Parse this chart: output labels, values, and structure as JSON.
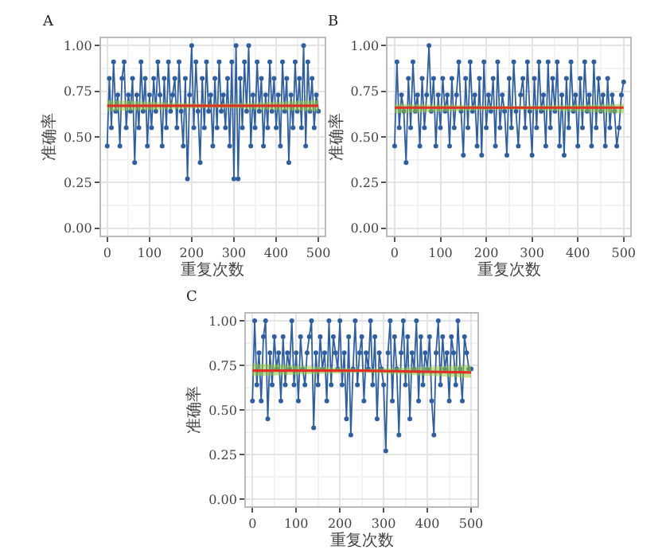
{
  "chart_data": [
    {
      "type": "line",
      "title": "A",
      "xlabel": "重复次数",
      "ylabel": "准确率",
      "xlim": [
        -15,
        515
      ],
      "ylim": [
        -0.04,
        1.04
      ],
      "xticks": [
        0,
        100,
        200,
        300,
        400,
        500
      ],
      "yticks": [
        {
          "value": 0,
          "label": "0.00"
        },
        {
          "value": 0.25,
          "label": "0.25"
        },
        {
          "value": 0.5,
          "label": "0.50"
        },
        {
          "value": 0.75,
          "label": "0.75"
        },
        {
          "value": 1,
          "label": "1.00"
        }
      ],
      "grid": true,
      "marker": "circle",
      "line_style": "solid",
      "x": [
        0,
        5,
        10,
        15,
        20,
        25,
        30,
        35,
        40,
        45,
        50,
        55,
        60,
        65,
        70,
        75,
        80,
        85,
        90,
        95,
        100,
        105,
        110,
        115,
        120,
        125,
        130,
        135,
        140,
        145,
        150,
        155,
        160,
        165,
        170,
        175,
        180,
        185,
        190,
        195,
        200,
        205,
        210,
        215,
        220,
        225,
        230,
        235,
        240,
        245,
        250,
        255,
        260,
        265,
        270,
        275,
        280,
        285,
        290,
        295,
        300,
        305,
        310,
        315,
        320,
        325,
        330,
        335,
        340,
        345,
        350,
        355,
        360,
        365,
        370,
        375,
        380,
        385,
        390,
        395,
        400,
        405,
        410,
        415,
        420,
        425,
        430,
        435,
        440,
        445,
        450,
        455,
        460,
        465,
        470,
        475,
        480,
        485,
        490,
        495,
        500
      ],
      "series": [
        {
          "color": "#2f5f9e",
          "values": [
            0.45,
            0.82,
            0.55,
            0.91,
            0.64,
            0.73,
            0.45,
            0.82,
            0.91,
            0.55,
            0.73,
            0.64,
            0.82,
            0.36,
            0.73,
            0.55,
            0.91,
            0.64,
            0.82,
            0.45,
            0.73,
            0.55,
            0.82,
            0.64,
            0.91,
            0.73,
            0.45,
            0.82,
            0.55,
            0.91,
            0.64,
            0.73,
            0.82,
            0.55,
            0.91,
            0.64,
            0.45,
            0.82,
            0.27,
            0.73,
            1.0,
            0.55,
            0.91,
            0.64,
            0.36,
            0.82,
            0.55,
            0.91,
            0.64,
            0.73,
            0.45,
            0.82,
            0.55,
            0.91,
            0.64,
            0.73,
            0.55,
            0.82,
            0.45,
            0.91,
            0.27,
            1.0,
            0.27,
            0.82,
            0.55,
            0.91,
            0.64,
            1.0,
            0.45,
            0.73,
            0.55,
            0.91,
            0.64,
            0.82,
            0.45,
            0.73,
            0.55,
            0.91,
            0.64,
            0.82,
            0.55,
            0.73,
            0.45,
            0.91,
            0.64,
            0.82,
            0.36,
            0.73,
            0.55,
            0.91,
            0.64,
            0.82,
            0.55,
            1.0,
            0.45,
            0.91,
            0.64,
            0.82,
            0.55,
            0.73,
            0.64
          ]
        },
        {
          "marker": "none",
          "color": "#e03127",
          "x": [
            0,
            250,
            500
          ],
          "values": [
            0.67,
            0.67,
            0.67
          ],
          "lower": [
            0.64,
            0.66,
            0.64
          ],
          "upper": [
            0.7,
            0.68,
            0.7
          ]
        }
      ]
    },
    {
      "type": "line",
      "title": "B",
      "xlabel": "重复次数",
      "ylabel": "准确率",
      "xlim": [
        -15,
        515
      ],
      "ylim": [
        -0.04,
        1.04
      ],
      "xticks": [
        0,
        100,
        200,
        300,
        400,
        500
      ],
      "yticks": [
        {
          "value": 0,
          "label": "0.00"
        },
        {
          "value": 0.25,
          "label": "0.25"
        },
        {
          "value": 0.5,
          "label": "0.50"
        },
        {
          "value": 0.75,
          "label": "0.75"
        },
        {
          "value": 1,
          "label": "1.00"
        }
      ],
      "grid": true,
      "marker": "circle",
      "line_style": "solid",
      "x": [
        0,
        5,
        10,
        15,
        20,
        25,
        30,
        35,
        40,
        45,
        50,
        55,
        60,
        65,
        70,
        75,
        80,
        85,
        90,
        95,
        100,
        105,
        110,
        115,
        120,
        125,
        130,
        135,
        140,
        145,
        150,
        155,
        160,
        165,
        170,
        175,
        180,
        185,
        190,
        195,
        200,
        205,
        210,
        215,
        220,
        225,
        230,
        235,
        240,
        245,
        250,
        255,
        260,
        265,
        270,
        275,
        280,
        285,
        290,
        295,
        300,
        305,
        310,
        315,
        320,
        325,
        330,
        335,
        340,
        345,
        350,
        355,
        360,
        365,
        370,
        375,
        380,
        385,
        390,
        395,
        400,
        405,
        410,
        415,
        420,
        425,
        430,
        435,
        440,
        445,
        450,
        455,
        460,
        465,
        470,
        475,
        480,
        485,
        490,
        495,
        500
      ],
      "series": [
        {
          "color": "#2f5f9e",
          "values": [
            0.45,
            0.91,
            0.55,
            0.73,
            0.64,
            0.36,
            0.82,
            0.55,
            0.91,
            0.64,
            0.73,
            0.45,
            0.82,
            0.55,
            0.73,
            1.0,
            0.64,
            0.82,
            0.45,
            0.73,
            0.55,
            0.82,
            0.64,
            0.73,
            0.45,
            0.82,
            0.55,
            0.73,
            0.91,
            0.64,
            0.4,
            0.82,
            0.55,
            0.91,
            0.64,
            0.73,
            0.45,
            0.82,
            0.4,
            0.91,
            0.55,
            0.73,
            0.64,
            0.82,
            0.45,
            0.91,
            0.55,
            0.73,
            0.64,
            0.4,
            0.82,
            0.55,
            0.91,
            0.64,
            0.45,
            0.73,
            0.82,
            0.55,
            0.91,
            0.64,
            0.4,
            0.82,
            0.55,
            0.91,
            0.64,
            0.73,
            0.45,
            0.91,
            0.55,
            0.82,
            0.64,
            0.91,
            0.45,
            0.73,
            0.4,
            0.82,
            0.55,
            0.91,
            0.64,
            0.73,
            0.45,
            0.82,
            0.55,
            0.91,
            0.64,
            0.73,
            0.45,
            0.91,
            0.55,
            0.82,
            0.64,
            0.73,
            0.45,
            0.82,
            0.55,
            0.73,
            0.64,
            0.45,
            0.55,
            0.73,
            0.8
          ]
        },
        {
          "marker": "none",
          "color": "#e03127",
          "x": [
            0,
            250,
            500
          ],
          "values": [
            0.66,
            0.66,
            0.66
          ],
          "lower": [
            0.63,
            0.65,
            0.63
          ],
          "upper": [
            0.68,
            0.67,
            0.68
          ]
        }
      ]
    },
    {
      "type": "line",
      "title": "C",
      "xlabel": "重复次数",
      "ylabel": "准确率",
      "xlim": [
        -15,
        515
      ],
      "ylim": [
        -0.04,
        1.04
      ],
      "xticks": [
        0,
        100,
        200,
        300,
        400,
        500
      ],
      "yticks": [
        {
          "value": 0,
          "label": "0.00"
        },
        {
          "value": 0.25,
          "label": "0.25"
        },
        {
          "value": 0.5,
          "label": "0.50"
        },
        {
          "value": 0.75,
          "label": "0.75"
        },
        {
          "value": 1,
          "label": "1.00"
        }
      ],
      "grid": true,
      "marker": "circle",
      "line_style": "solid",
      "x": [
        0,
        5,
        10,
        15,
        20,
        25,
        30,
        35,
        40,
        45,
        50,
        55,
        60,
        65,
        70,
        75,
        80,
        85,
        90,
        95,
        100,
        105,
        110,
        115,
        120,
        125,
        130,
        135,
        140,
        145,
        150,
        155,
        160,
        165,
        170,
        175,
        180,
        185,
        190,
        195,
        200,
        205,
        210,
        215,
        220,
        225,
        230,
        235,
        240,
        245,
        250,
        255,
        260,
        265,
        270,
        275,
        280,
        285,
        290,
        295,
        300,
        305,
        310,
        315,
        320,
        325,
        330,
        335,
        340,
        345,
        350,
        355,
        360,
        365,
        370,
        375,
        380,
        385,
        390,
        395,
        400,
        405,
        410,
        415,
        420,
        425,
        430,
        435,
        440,
        445,
        450,
        455,
        460,
        465,
        470,
        475,
        480,
        485,
        490,
        495,
        500
      ],
      "series": [
        {
          "color": "#2f5f9e",
          "values": [
            0.55,
            1.0,
            0.64,
            0.82,
            0.55,
            0.91,
            1.0,
            0.45,
            0.82,
            0.64,
            0.91,
            0.73,
            0.82,
            0.55,
            0.91,
            0.64,
            0.82,
            0.73,
            1.0,
            0.64,
            0.82,
            0.55,
            0.91,
            0.73,
            0.64,
            0.82,
            0.91,
            1.0,
            0.4,
            0.82,
            0.64,
            0.91,
            0.73,
            0.82,
            0.55,
            1.0,
            0.64,
            0.91,
            0.82,
            0.73,
            1.0,
            0.64,
            0.82,
            0.45,
            0.91,
            0.36,
            0.73,
            1.0,
            0.64,
            0.82,
            0.91,
            0.55,
            0.82,
            0.73,
            1.0,
            0.64,
            0.91,
            0.45,
            0.82,
            0.73,
            0.64,
            0.27,
            0.82,
            1.0,
            0.55,
            0.91,
            0.73,
            0.36,
            0.82,
            1.0,
            0.64,
            0.91,
            0.45,
            0.82,
            0.73,
            1.0,
            0.55,
            0.91,
            0.64,
            0.82,
            0.73,
            0.91,
            0.55,
            0.36,
            0.82,
            1.0,
            0.64,
            0.91,
            0.73,
            0.82,
            0.55,
            0.91,
            0.82,
            0.64,
            1.0,
            0.73,
            0.55,
            0.91,
            0.82,
            0.73,
            0.73
          ]
        },
        {
          "marker": "none",
          "color": "#e03127",
          "x": [
            0,
            250,
            500
          ],
          "values": [
            0.72,
            0.72,
            0.71
          ],
          "lower": [
            0.69,
            0.71,
            0.68
          ],
          "upper": [
            0.76,
            0.73,
            0.75
          ]
        }
      ]
    }
  ]
}
